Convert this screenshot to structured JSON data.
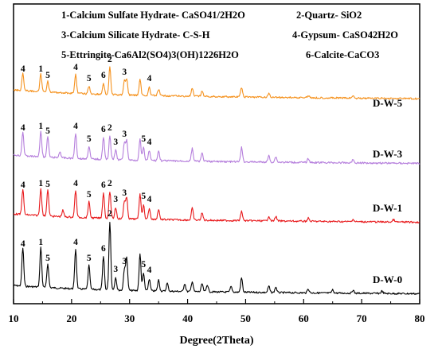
{
  "chart_data": {
    "type": "line",
    "xlabel": "Degree(2Theta)",
    "ylabel": "",
    "xlim": [
      10,
      80
    ],
    "x_ticks": [
      "10",
      "20",
      "30",
      "40",
      "50",
      "60",
      "70",
      "80"
    ],
    "y_ticks": [],
    "grid": false,
    "legend": [
      "1-Calcium Sulfate Hydrate- CaSO41/2H2O",
      "2-Quartz- SiO2",
      "3-Calcium Silicate Hydrate- C-S-H",
      "4-Gypsum- CaSO42H2O",
      "5-Ettringite-Ca6Al2(SO4)3(OH)1226H2O",
      "6-Calcite-CaCO3"
    ],
    "series": [
      {
        "name": "D-W-0",
        "color": "#000000",
        "peaks": [
          {
            "two_theta": 11.6,
            "intensity": 48,
            "label": "4"
          },
          {
            "two_theta": 14.7,
            "intensity": 50,
            "label": "1"
          },
          {
            "two_theta": 15.9,
            "intensity": 30,
            "label": "5"
          },
          {
            "two_theta": 20.7,
            "intensity": 50,
            "label": "4"
          },
          {
            "two_theta": 23.0,
            "intensity": 30,
            "label": "5"
          },
          {
            "two_theta": 25.5,
            "intensity": 42,
            "label": "6"
          },
          {
            "two_theta": 26.6,
            "intensity": 86,
            "label": "2"
          },
          {
            "two_theta": 27.6,
            "intensity": 16,
            "label": "3"
          },
          {
            "two_theta": 29.1,
            "intensity": 26,
            "label": "3"
          },
          {
            "two_theta": 29.5,
            "intensity": 42,
            "label": ""
          },
          {
            "two_theta": 31.8,
            "intensity": 46,
            "label": ""
          },
          {
            "two_theta": 32.4,
            "intensity": 22,
            "label": "5"
          },
          {
            "two_theta": 33.4,
            "intensity": 15,
            "label": "4"
          },
          {
            "two_theta": 35.0,
            "intensity": 14,
            "label": ""
          },
          {
            "two_theta": 36.5,
            "intensity": 10,
            "label": ""
          },
          {
            "two_theta": 39.5,
            "intensity": 10,
            "label": ""
          },
          {
            "two_theta": 40.8,
            "intensity": 13,
            "label": ""
          },
          {
            "two_theta": 42.5,
            "intensity": 10,
            "label": ""
          },
          {
            "two_theta": 43.4,
            "intensity": 9,
            "label": ""
          },
          {
            "two_theta": 47.5,
            "intensity": 7,
            "label": ""
          },
          {
            "two_theta": 49.3,
            "intensity": 18,
            "label": ""
          },
          {
            "two_theta": 54.0,
            "intensity": 8,
            "label": ""
          },
          {
            "two_theta": 55.2,
            "intensity": 7,
            "label": ""
          },
          {
            "two_theta": 60.8,
            "intensity": 5,
            "label": ""
          },
          {
            "two_theta": 65.0,
            "intensity": 4,
            "label": ""
          },
          {
            "two_theta": 68.5,
            "intensity": 4,
            "label": ""
          },
          {
            "two_theta": 73.5,
            "intensity": 3,
            "label": ""
          }
        ]
      },
      {
        "name": "D-W-1",
        "color": "#e8191c",
        "peaks": [
          {
            "two_theta": 11.6,
            "intensity": 32,
            "label": "4"
          },
          {
            "two_theta": 14.7,
            "intensity": 34,
            "label": "1"
          },
          {
            "two_theta": 15.9,
            "intensity": 33,
            "label": "5"
          },
          {
            "two_theta": 18.5,
            "intensity": 8,
            "label": ""
          },
          {
            "two_theta": 20.7,
            "intensity": 34,
            "label": "4"
          },
          {
            "two_theta": 23.0,
            "intensity": 20,
            "label": "5"
          },
          {
            "two_theta": 25.5,
            "intensity": 32,
            "label": "6"
          },
          {
            "two_theta": 26.6,
            "intensity": 34,
            "label": "2"
          },
          {
            "two_theta": 27.6,
            "intensity": 14,
            "label": "3"
          },
          {
            "two_theta": 29.1,
            "intensity": 22,
            "label": "3"
          },
          {
            "two_theta": 29.5,
            "intensity": 26,
            "label": ""
          },
          {
            "two_theta": 31.8,
            "intensity": 32,
            "label": ""
          },
          {
            "two_theta": 32.4,
            "intensity": 18,
            "label": "5"
          },
          {
            "two_theta": 33.4,
            "intensity": 14,
            "label": "4"
          },
          {
            "two_theta": 35.0,
            "intensity": 13,
            "label": ""
          },
          {
            "two_theta": 40.8,
            "intensity": 15,
            "label": ""
          },
          {
            "two_theta": 42.5,
            "intensity": 9,
            "label": ""
          },
          {
            "two_theta": 49.3,
            "intensity": 12,
            "label": ""
          },
          {
            "two_theta": 54.0,
            "intensity": 6,
            "label": ""
          },
          {
            "two_theta": 55.2,
            "intensity": 6,
            "label": ""
          },
          {
            "two_theta": 60.8,
            "intensity": 4,
            "label": ""
          },
          {
            "two_theta": 68.5,
            "intensity": 3,
            "label": ""
          },
          {
            "two_theta": 75.5,
            "intensity": 3,
            "label": ""
          }
        ]
      },
      {
        "name": "D-W-3",
        "color": "#b57edc",
        "peaks": [
          {
            "two_theta": 11.6,
            "intensity": 30,
            "label": "4"
          },
          {
            "two_theta": 14.7,
            "intensity": 32,
            "label": "1"
          },
          {
            "two_theta": 15.9,
            "intensity": 26,
            "label": "5"
          },
          {
            "two_theta": 18.0,
            "intensity": 8,
            "label": ""
          },
          {
            "two_theta": 20.7,
            "intensity": 32,
            "label": "4"
          },
          {
            "two_theta": 23.0,
            "intensity": 16,
            "label": "5"
          },
          {
            "two_theta": 25.5,
            "intensity": 28,
            "label": "6"
          },
          {
            "two_theta": 26.6,
            "intensity": 30,
            "label": "2"
          },
          {
            "two_theta": 27.6,
            "intensity": 12,
            "label": "3"
          },
          {
            "two_theta": 29.1,
            "intensity": 22,
            "label": "3"
          },
          {
            "two_theta": 29.5,
            "intensity": 24,
            "label": ""
          },
          {
            "two_theta": 31.8,
            "intensity": 26,
            "label": ""
          },
          {
            "two_theta": 32.4,
            "intensity": 16,
            "label": "5"
          },
          {
            "two_theta": 33.4,
            "intensity": 12,
            "label": "4"
          },
          {
            "two_theta": 35.0,
            "intensity": 12,
            "label": ""
          },
          {
            "two_theta": 40.8,
            "intensity": 16,
            "label": ""
          },
          {
            "two_theta": 42.5,
            "intensity": 10,
            "label": ""
          },
          {
            "two_theta": 49.3,
            "intensity": 18,
            "label": ""
          },
          {
            "two_theta": 54.0,
            "intensity": 8,
            "label": ""
          },
          {
            "two_theta": 55.2,
            "intensity": 7,
            "label": ""
          },
          {
            "two_theta": 60.8,
            "intensity": 5,
            "label": ""
          },
          {
            "two_theta": 68.5,
            "intensity": 4,
            "label": ""
          }
        ]
      },
      {
        "name": "D-W-5",
        "color": "#f5921e",
        "peaks": [
          {
            "two_theta": 11.6,
            "intensity": 22,
            "label": "4"
          },
          {
            "two_theta": 14.7,
            "intensity": 22,
            "label": "1"
          },
          {
            "two_theta": 15.9,
            "intensity": 14,
            "label": "5"
          },
          {
            "two_theta": 20.7,
            "intensity": 24,
            "label": "4"
          },
          {
            "two_theta": 23.0,
            "intensity": 10,
            "label": "5"
          },
          {
            "two_theta": 25.5,
            "intensity": 14,
            "label": "6"
          },
          {
            "two_theta": 26.6,
            "intensity": 34,
            "label": "2"
          },
          {
            "two_theta": 29.1,
            "intensity": 18,
            "label": "3"
          },
          {
            "two_theta": 29.5,
            "intensity": 20,
            "label": ""
          },
          {
            "two_theta": 31.8,
            "intensity": 20,
            "label": ""
          },
          {
            "two_theta": 33.4,
            "intensity": 10,
            "label": "4"
          },
          {
            "two_theta": 35.0,
            "intensity": 8,
            "label": ""
          },
          {
            "two_theta": 40.8,
            "intensity": 10,
            "label": ""
          },
          {
            "two_theta": 42.5,
            "intensity": 7,
            "label": ""
          },
          {
            "two_theta": 49.3,
            "intensity": 12,
            "label": ""
          },
          {
            "two_theta": 54.0,
            "intensity": 5,
            "label": ""
          },
          {
            "two_theta": 60.8,
            "intensity": 3,
            "label": ""
          },
          {
            "two_theta": 68.5,
            "intensity": 3,
            "label": ""
          }
        ]
      }
    ]
  }
}
